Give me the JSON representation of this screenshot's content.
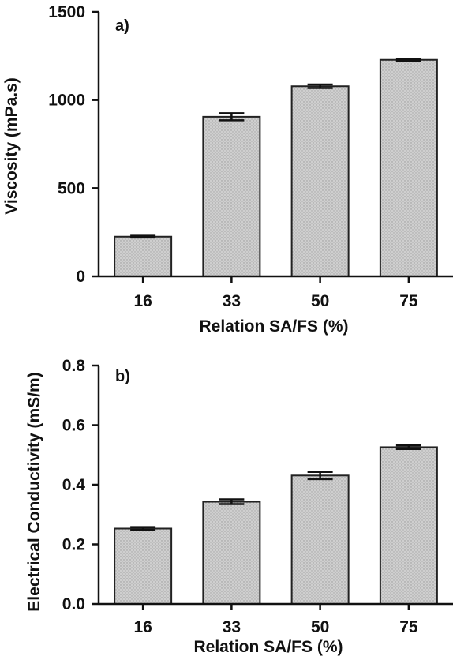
{
  "chart_data": [
    {
      "type": "bar",
      "panel_label": "a)",
      "categories": [
        "16",
        "33",
        "50",
        "75"
      ],
      "values": [
        225,
        905,
        1078,
        1228
      ],
      "errors": [
        5,
        20,
        10,
        5
      ],
      "xlabel": "Relation SA/FS (%)",
      "ylabel": "Viscosity (mPa.s)",
      "ylim": [
        0,
        1500
      ],
      "yticks": [
        "0",
        "500",
        "1000",
        "1500"
      ],
      "ytick_values": [
        0,
        500,
        1000,
        1500
      ],
      "grid": false,
      "bar_color": "#c8c8c8"
    },
    {
      "type": "bar",
      "panel_label": "b)",
      "categories": [
        "16",
        "33",
        "50",
        "75"
      ],
      "values": [
        0.253,
        0.343,
        0.431,
        0.526
      ],
      "errors": [
        0.005,
        0.008,
        0.012,
        0.006
      ],
      "xlabel": "Relation SA/FS (%)",
      "ylabel": "Electrical Conductivity (mS/m)",
      "ylim": [
        0,
        0.8
      ],
      "yticks": [
        "0.0",
        "0.2",
        "0.4",
        "0.6",
        "0.8"
      ],
      "ytick_values": [
        0,
        0.2,
        0.4,
        0.6,
        0.8
      ],
      "grid": false,
      "bar_color": "#c8c8c8"
    }
  ]
}
